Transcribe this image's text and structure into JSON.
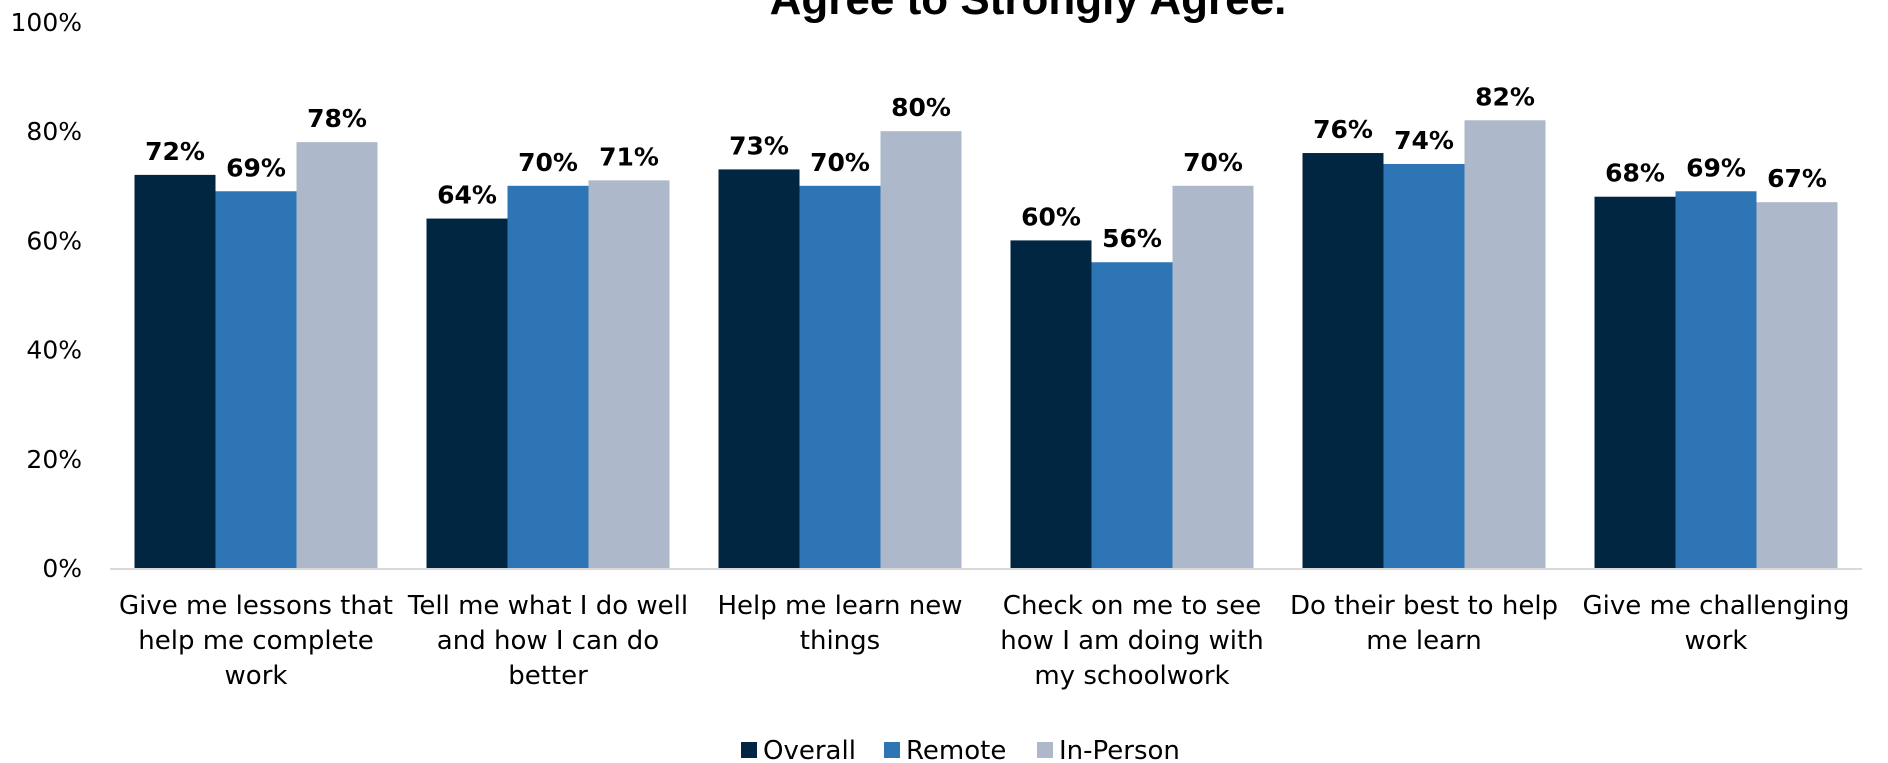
{
  "chart_data": {
    "type": "bar",
    "title": "Agree to Strongly Agree.",
    "categories": [
      [
        "Give me lessons that",
        "help me complete",
        "work"
      ],
      [
        "Tell me what I do well",
        "and how I can do",
        "better"
      ],
      [
        "Help me learn new",
        "things"
      ],
      [
        "Check on me to see",
        "how I am doing with",
        "my schoolwork"
      ],
      [
        "Do their best to help",
        "me learn"
      ],
      [
        "Give me challenging",
        "work"
      ]
    ],
    "series": [
      {
        "name": "Overall",
        "color": "#002642",
        "values": [
          72,
          64,
          73,
          60,
          76,
          68
        ],
        "labels": [
          "72%",
          "64%",
          "73%",
          "60%",
          "76%",
          "68%"
        ]
      },
      {
        "name": "Remote",
        "color": "#2E75B6",
        "values": [
          69,
          70,
          70,
          56,
          74,
          69
        ],
        "labels": [
          "69%",
          "70%",
          "70%",
          "56%",
          "74%",
          "69%"
        ]
      },
      {
        "name": "In-Person",
        "color": "#ADB9CA",
        "values": [
          78,
          71,
          80,
          70,
          82,
          67
        ],
        "labels": [
          "78%",
          "71%",
          "80%",
          "70%",
          "82%",
          "67%"
        ]
      }
    ],
    "ylim": [
      0,
      100
    ],
    "yticks": [
      "0%",
      "20%",
      "40%",
      "60%",
      "80%",
      "100%"
    ],
    "grid": false,
    "legend": "bottom"
  }
}
